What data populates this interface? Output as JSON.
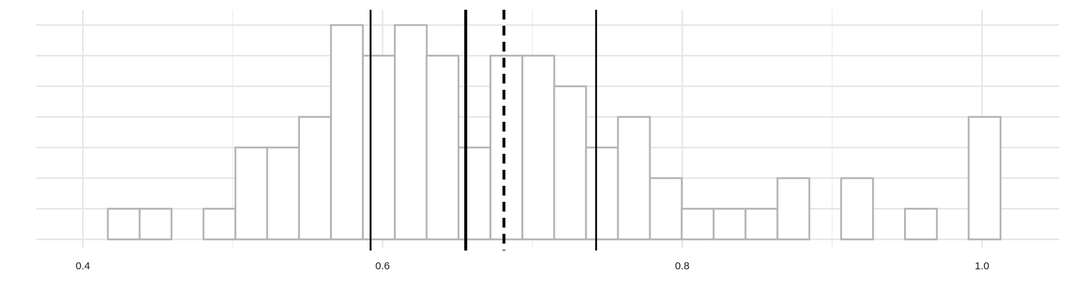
{
  "chart_data": {
    "type": "bar",
    "title": "",
    "xlabel": "",
    "ylabel": "",
    "xlim": [
      0.385,
      1.05
    ],
    "ylim": [
      0,
      7
    ],
    "x_ticks": [
      0.4,
      0.6,
      0.8,
      1.0
    ],
    "x_tick_labels": [
      "0.4",
      "0.6",
      "0.8",
      "1.0"
    ],
    "y_grid": [
      0,
      1,
      2,
      3,
      4,
      5,
      6,
      7
    ],
    "grid": true,
    "bin_width": 0.02128,
    "bins": [
      {
        "x0": 0.4167,
        "count": 1
      },
      {
        "x0": 0.4379,
        "count": 1
      },
      {
        "x0": 0.4592,
        "count": 0
      },
      {
        "x0": 0.4805,
        "count": 1
      },
      {
        "x0": 0.5018,
        "count": 3
      },
      {
        "x0": 0.523,
        "count": 3
      },
      {
        "x0": 0.5443,
        "count": 4
      },
      {
        "x0": 0.5656,
        "count": 7
      },
      {
        "x0": 0.5869,
        "count": 6
      },
      {
        "x0": 0.6082,
        "count": 7
      },
      {
        "x0": 0.6294,
        "count": 6
      },
      {
        "x0": 0.6507,
        "count": 3
      },
      {
        "x0": 0.672,
        "count": 6
      },
      {
        "x0": 0.6933,
        "count": 6
      },
      {
        "x0": 0.7145,
        "count": 5
      },
      {
        "x0": 0.7358,
        "count": 3
      },
      {
        "x0": 0.7571,
        "count": 4
      },
      {
        "x0": 0.7784,
        "count": 2
      },
      {
        "x0": 0.7996,
        "count": 1
      },
      {
        "x0": 0.8209,
        "count": 1
      },
      {
        "x0": 0.8422,
        "count": 1
      },
      {
        "x0": 0.8635,
        "count": 2
      },
      {
        "x0": 0.8847,
        "count": 0
      },
      {
        "x0": 0.906,
        "count": 2
      },
      {
        "x0": 0.9273,
        "count": 0
      },
      {
        "x0": 0.9486,
        "count": 1
      },
      {
        "x0": 0.9699,
        "count": 0
      },
      {
        "x0": 0.9911,
        "count": 4
      }
    ],
    "reference_lines": [
      {
        "x": 0.592,
        "style": "solid",
        "weight": "normal"
      },
      {
        "x": 0.6555,
        "style": "solid",
        "weight": "bold"
      },
      {
        "x": 0.681,
        "style": "dashed",
        "weight": "bold"
      },
      {
        "x": 0.7425,
        "style": "solid",
        "weight": "normal"
      }
    ],
    "colors": {
      "bar_outline": "#b3b3b3",
      "bar_fill": "#ffffff",
      "grid": "#e6e6e6",
      "reference_line": "#000000"
    }
  }
}
